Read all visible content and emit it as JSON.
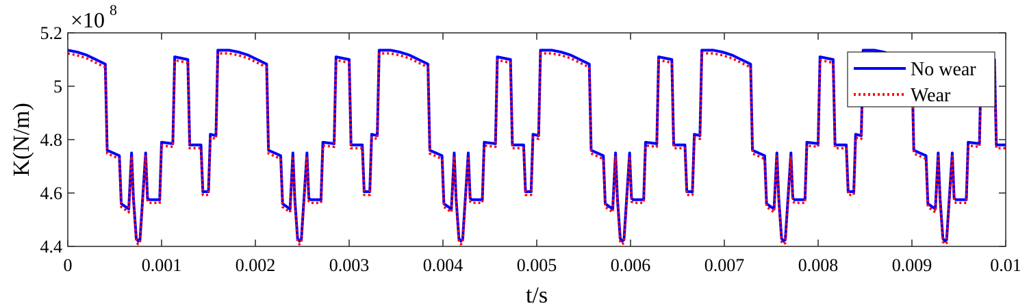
{
  "chart_data": {
    "type": "line",
    "title": "",
    "xlabel": "t/s",
    "ylabel": "K(N/m)",
    "y_multiplier": {
      "base": "×10",
      "exponent": "8"
    },
    "xlim": [
      0,
      0.01
    ],
    "ylim": [
      4.4,
      5.2
    ],
    "xticks": [
      0,
      0.001,
      0.002,
      0.003,
      0.004,
      0.005,
      0.006,
      0.007,
      0.008,
      0.009,
      0.01
    ],
    "xtick_labels": [
      "0",
      "0.001",
      "0.002",
      "0.003",
      "0.004",
      "0.005",
      "0.006",
      "0.007",
      "0.008",
      "0.009",
      "0.01"
    ],
    "yticks": [
      4.4,
      4.6,
      4.8,
      5.0,
      5.2
    ],
    "ytick_labels": [
      "4.4",
      "4.6",
      "4.8",
      "5",
      "5.2"
    ],
    "grid": false,
    "legend_position": "top-right",
    "period": 0.00172,
    "base_period": {
      "t": [
        0,
        0.0001,
        0.0002,
        0.0003,
        0.0004,
        0.00042,
        0.00055,
        0.00057,
        0.00065,
        0.00068,
        0.0007,
        0.00073,
        0.00075,
        0.00077,
        0.00083,
        0.00085,
        0.00087,
        0.00098,
        0.001,
        0.00112,
        0.00114,
        0.00128,
        0.0013,
        0.00142,
        0.00144,
        0.0015,
        0.00152,
        0.00158,
        0.0016,
        0.00168,
        0.00172
      ],
      "no_wear": [
        5.135,
        5.128,
        5.117,
        5.1,
        5.083,
        4.76,
        4.74,
        4.56,
        4.54,
        4.75,
        4.58,
        4.43,
        4.42,
        4.425,
        4.75,
        4.58,
        4.575,
        4.575,
        4.79,
        4.785,
        5.11,
        5.1,
        4.78,
        4.78,
        4.605,
        4.605,
        4.82,
        4.815,
        5.135,
        5.135,
        5.135
      ]
    },
    "series": [
      {
        "name": "No wear",
        "color": "#0000ff",
        "dash": "solid",
        "offset": 0
      },
      {
        "name": "Wear",
        "color": "#ff0000",
        "dash": "dotted",
        "offset": -0.012
      }
    ]
  }
}
